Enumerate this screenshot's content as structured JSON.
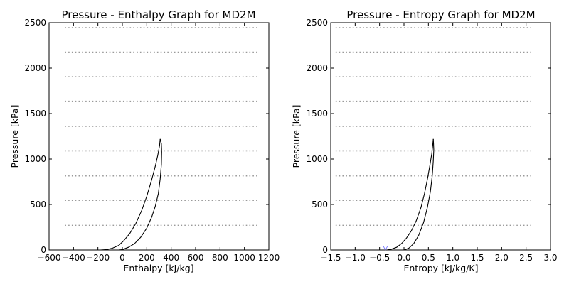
{
  "chart_data": [
    {
      "type": "line",
      "title": "Pressure - Enthalpy Graph for MD2M",
      "xlabel": "Enthalpy [kJ/kg]",
      "ylabel": "Pressure [kPa]",
      "xlim": [
        -600,
        1200
      ],
      "ylim": [
        0,
        2500
      ],
      "xticks": [
        -600,
        -400,
        -200,
        0,
        200,
        400,
        600,
        800,
        1000,
        1200
      ],
      "yticks": [
        0,
        500,
        1000,
        1500,
        2000,
        2500
      ],
      "xtick_labels": [
        "−600",
        "−400",
        "−200",
        "0",
        "200",
        "400",
        "600",
        "800",
        "1000",
        "1200"
      ],
      "ytick_labels": [
        "0",
        "500",
        "1000",
        "1500",
        "2000",
        "2500"
      ],
      "grid": false,
      "isobar_pressures": [
        270,
        545,
        815,
        1090,
        1360,
        1635,
        1905,
        2175,
        2445
      ],
      "isobar_x_range": [
        -470,
        1110
      ],
      "series": [
        {
          "role": "saturated-liquid",
          "x": [
            -180,
            -130,
            -80,
            -30,
            10,
            60,
            110,
            160,
            200,
            240,
            270,
            290,
            305,
            310
          ],
          "y": [
            0,
            5,
            20,
            50,
            100,
            180,
            290,
            440,
            590,
            770,
            920,
            1040,
            1150,
            1220
          ]
        },
        {
          "role": "saturated-vapor",
          "x": [
            -30,
            0,
            50,
            100,
            150,
            200,
            240,
            270,
            295,
            310,
            320,
            322,
            320,
            310
          ],
          "y": [
            0,
            5,
            30,
            70,
            140,
            240,
            360,
            480,
            620,
            780,
            940,
            1080,
            1170,
            1220
          ]
        }
      ]
    },
    {
      "type": "line",
      "title": "Pressure - Entropy Graph for MD2M",
      "xlabel": "Entropy [kJ/kg/K]",
      "ylabel": "Pressure [kPa]",
      "xlim": [
        -1.5,
        3.0
      ],
      "ylim": [
        0,
        2500
      ],
      "xticks": [
        -1.5,
        -1.0,
        -0.5,
        0.0,
        0.5,
        1.0,
        1.5,
        2.0,
        2.5,
        3.0
      ],
      "yticks": [
        0,
        500,
        1000,
        1500,
        2000,
        2500
      ],
      "xtick_labels": [
        "−1.5",
        "−1.0",
        "−0.5",
        "0.0",
        "0.5",
        "1.0",
        "1.5",
        "2.0",
        "2.5",
        "3.0"
      ],
      "ytick_labels": [
        "0",
        "500",
        "1000",
        "1500",
        "2000",
        "2500"
      ],
      "grid": false,
      "isobar_pressures": [
        270,
        545,
        815,
        1090,
        1360,
        1635,
        1905,
        2175,
        2445
      ],
      "isobar_x_range": [
        -1.4,
        2.6
      ],
      "series": [
        {
          "role": "saturated-liquid",
          "x": [
            -0.35,
            -0.25,
            -0.15,
            -0.05,
            0.05,
            0.15,
            0.25,
            0.35,
            0.42,
            0.48,
            0.53,
            0.57,
            0.59,
            0.6
          ],
          "y": [
            0,
            10,
            30,
            70,
            130,
            210,
            320,
            470,
            620,
            780,
            930,
            1060,
            1160,
            1220
          ]
        },
        {
          "role": "saturated-vapor",
          "x": [
            0.0,
            0.1,
            0.2,
            0.3,
            0.4,
            0.48,
            0.54,
            0.58,
            0.6,
            0.61,
            0.605,
            0.6
          ],
          "y": [
            0,
            20,
            70,
            160,
            300,
            470,
            640,
            820,
            980,
            1100,
            1180,
            1220
          ]
        },
        {
          "role": "artifact",
          "x": [
            -0.42,
            -0.38,
            -0.34
          ],
          "y": [
            40,
            0,
            40
          ]
        }
      ]
    }
  ]
}
